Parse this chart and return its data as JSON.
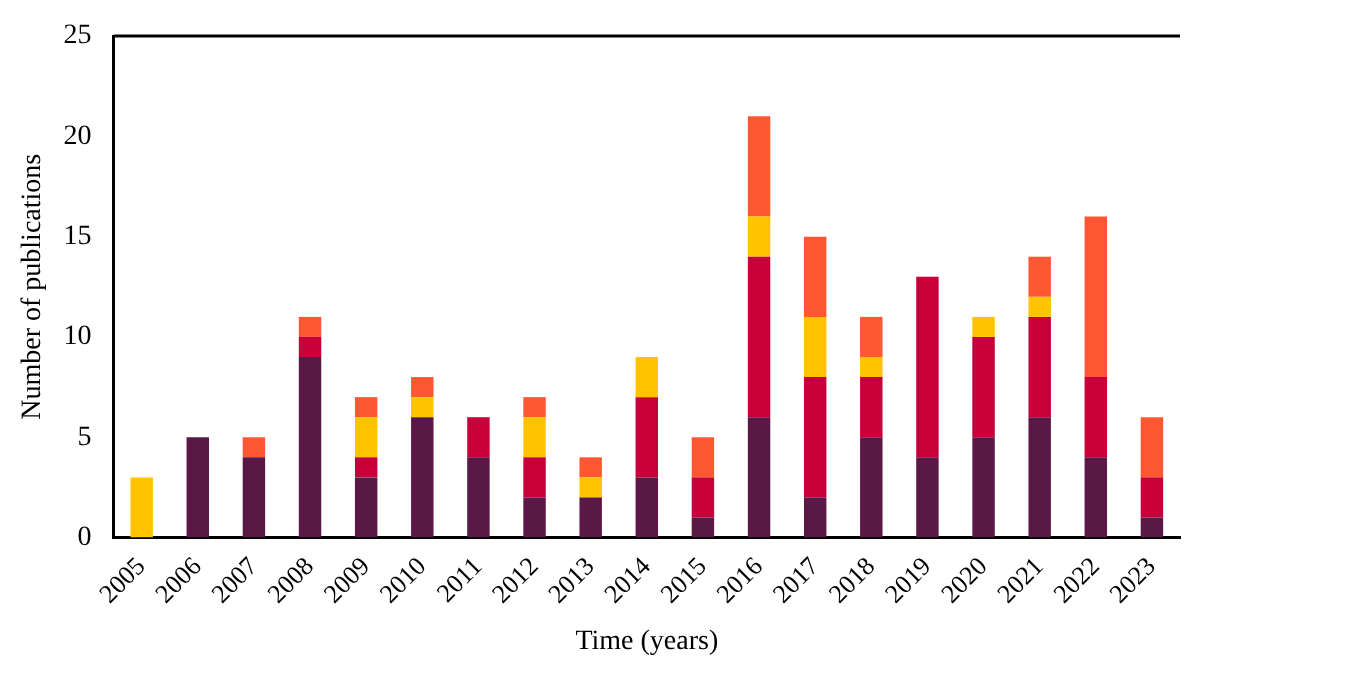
{
  "chart_data": {
    "type": "bar",
    "stacked": true,
    "xlabel": "Time (years)",
    "ylabel": "Number of publications",
    "categories": [
      "2005",
      "2006",
      "2007",
      "2008",
      "2009",
      "2010",
      "2011",
      "2012",
      "2013",
      "2014",
      "2015",
      "2016",
      "2017",
      "2018",
      "2019",
      "2020",
      "2021",
      "2022",
      "2023"
    ],
    "series": [
      {
        "color": "#5a1846",
        "values": [
          0,
          5,
          4,
          9,
          3,
          6,
          4,
          2,
          2,
          3,
          1,
          6,
          2,
          5,
          4,
          5,
          6,
          4,
          1
        ]
      },
      {
        "color": "#c70039",
        "values": [
          0,
          0,
          0,
          1,
          1,
          0,
          2,
          2,
          0,
          4,
          2,
          8,
          6,
          3,
          9,
          5,
          5,
          4,
          2
        ]
      },
      {
        "color": "#ffc300",
        "values": [
          3,
          0,
          0,
          0,
          2,
          1,
          0,
          2,
          1,
          2,
          0,
          2,
          3,
          1,
          0,
          1,
          1,
          0,
          0
        ]
      },
      {
        "color": "#ff5733",
        "values": [
          0,
          0,
          1,
          1,
          1,
          1,
          0,
          1,
          1,
          0,
          2,
          5,
          4,
          2,
          0,
          0,
          2,
          8,
          3
        ]
      }
    ],
    "ylim": [
      0,
      25
    ],
    "yticks": [
      0,
      5,
      10,
      15,
      20,
      25
    ],
    "grid": false,
    "legend": false
  }
}
